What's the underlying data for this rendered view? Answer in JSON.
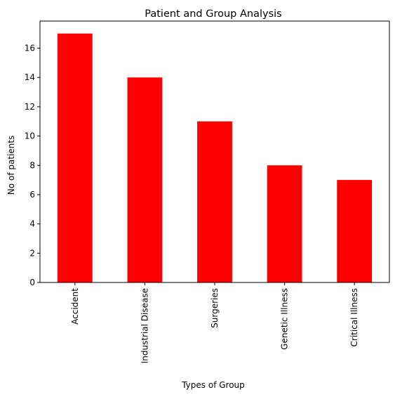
{
  "chart_data": {
    "type": "bar",
    "title": "Patient and Group Analysis",
    "xlabel": "Types of Group",
    "ylabel": "No of patients",
    "categories": [
      "Accident",
      "Industrial Disease",
      "Surgeries",
      "Genetic Illness",
      "Critical Illness"
    ],
    "values": [
      17,
      14,
      11,
      8,
      7
    ],
    "ylim": [
      0,
      17.85
    ],
    "yticks": [
      0,
      2,
      4,
      6,
      8,
      10,
      12,
      14,
      16
    ],
    "bar_color": "#ff0000",
    "grid": false,
    "legend": "none"
  }
}
